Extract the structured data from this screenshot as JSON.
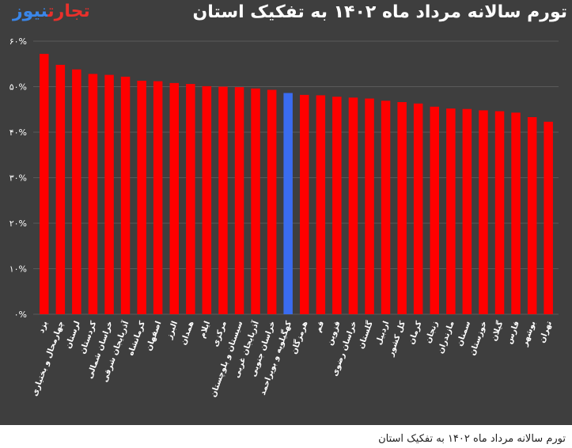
{
  "header": {
    "title": "تورم سالانه مرداد ماه ۱۴۰۲ به تفکیک استان",
    "logo_part1": "تجارت",
    "logo_part2": "نیوز"
  },
  "caption": "تورم سالانه مرداد ماه ۱۴۰۲ به تفکیک استان",
  "colors": {
    "background": "#3e3e3e",
    "bar": "#ff0000",
    "highlight_bar": "#3a6cf0",
    "grid": "#5a5a5a",
    "text": "#ffffff"
  },
  "chart_data": {
    "type": "bar",
    "ylim": [
      0,
      60
    ],
    "yticks": [
      0,
      10,
      20,
      30,
      40,
      50,
      60
    ],
    "ytick_labels": [
      "۰%",
      "۱۰%",
      "۲۰%",
      "۳۰%",
      "۴۰%",
      "۵۰%",
      "۶۰%"
    ],
    "grid": true,
    "categories": [
      "یزد",
      "چهارمحال و بختیاری",
      "لرستان",
      "کردستان",
      "خراسان شمالی",
      "آذربایجان شرقی",
      "کرمانشاه",
      "اصفهان",
      "البرز",
      "همدان",
      "ایلام",
      "مرکزی",
      "سیستان و بلوچستان",
      "آذربایجان غربی",
      "خراسان جنوبی",
      "کهگیلویه و بویراحمد",
      "هرمزگان",
      "قم",
      "قزوین",
      "خراسان رضوی",
      "گلستان",
      "اردبیل",
      "کل کشور",
      "کرمان",
      "زنجان",
      "مازندران",
      "سمنان",
      "خوزستان",
      "گیلان",
      "فارس",
      "بوشهر",
      "تهران"
    ],
    "values": [
      57.2,
      54.8,
      53.8,
      52.8,
      52.6,
      52.2,
      51.3,
      51.2,
      50.8,
      50.6,
      50.1,
      50.0,
      49.9,
      49.6,
      49.3,
      48.6,
      48.2,
      48.1,
      47.8,
      47.6,
      47.4,
      46.9,
      46.6,
      46.3,
      45.6,
      45.2,
      45.1,
      44.8,
      44.6,
      44.3,
      43.3,
      42.3
    ],
    "highlight": "کهگیلویه و بویراحمد"
  }
}
